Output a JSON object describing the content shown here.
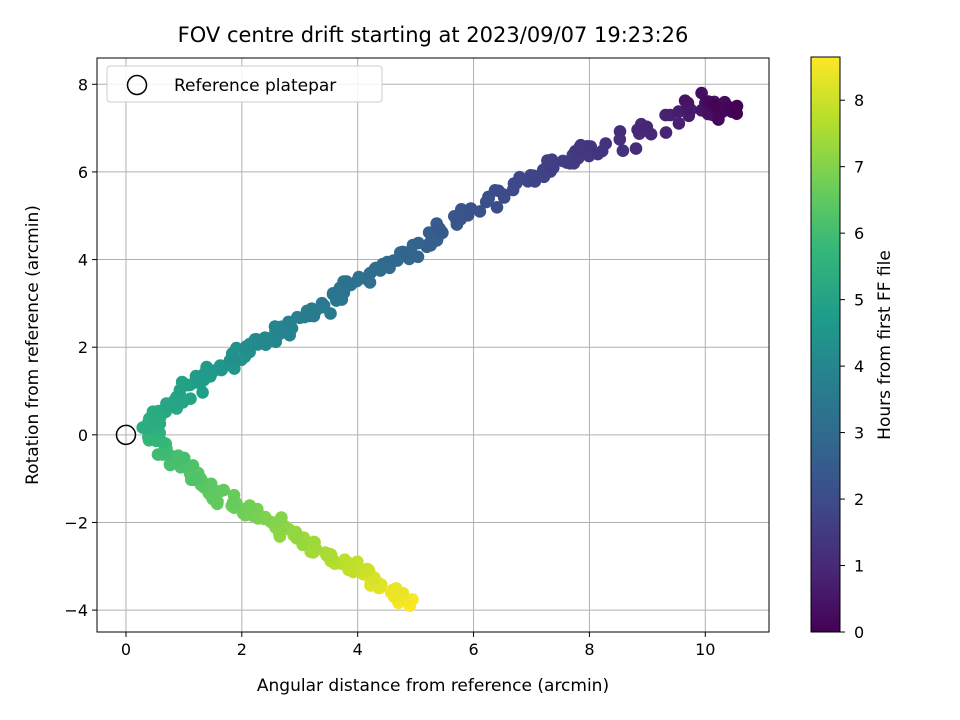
{
  "chart_data": {
    "type": "scatter",
    "title": "FOV centre drift starting at 2023/09/07 19:23:26",
    "xlabel": "Angular distance from reference (arcmin)",
    "ylabel": "Rotation from reference (arcmin)",
    "xlim": [
      -0.5,
      11.1
    ],
    "ylim": [
      -4.5,
      8.6
    ],
    "xticks": [
      0,
      2,
      4,
      6,
      8,
      10
    ],
    "yticks": [
      -4,
      -2,
      0,
      2,
      4,
      6,
      8
    ],
    "grid": true,
    "legend": {
      "placement": "top-left",
      "entries": [
        {
          "label": "Reference platepar",
          "marker": "open-circle"
        }
      ]
    },
    "reference_point": {
      "x": 0,
      "y": 0
    },
    "colorbar": {
      "label": "Hours from first FF file",
      "range": [
        0,
        8.65
      ],
      "ticks": [
        0,
        1,
        2,
        3,
        4,
        5,
        6,
        7,
        8
      ],
      "colormap": "viridis"
    },
    "colormap_stops": [
      "#440154",
      "#482878",
      "#3e4989",
      "#31688e",
      "#26828e",
      "#1f9e89",
      "#35b779",
      "#6ece58",
      "#b5de2b",
      "#fde725"
    ],
    "anchors": [
      {
        "x": 10.4,
        "y": 7.4,
        "hours": 0.0
      },
      {
        "x": 10.0,
        "y": 7.5,
        "hours": 0.5
      },
      {
        "x": 8.2,
        "y": 6.6,
        "hours": 1.3
      },
      {
        "x": 7.3,
        "y": 6.1,
        "hours": 1.7
      },
      {
        "x": 6.0,
        "y": 5.2,
        "hours": 2.2
      },
      {
        "x": 5.0,
        "y": 4.2,
        "hours": 2.8
      },
      {
        "x": 3.8,
        "y": 3.4,
        "hours": 3.3
      },
      {
        "x": 3.0,
        "y": 2.5,
        "hours": 3.8
      },
      {
        "x": 2.0,
        "y": 1.9,
        "hours": 4.3
      },
      {
        "x": 1.2,
        "y": 1.1,
        "hours": 4.9
      },
      {
        "x": 0.4,
        "y": 0.3,
        "hours": 5.4
      },
      {
        "x": 0.5,
        "y": -0.1,
        "hours": 5.8
      },
      {
        "x": 1.0,
        "y": -0.8,
        "hours": 6.2
      },
      {
        "x": 1.7,
        "y": -1.5,
        "hours": 6.6
      },
      {
        "x": 2.6,
        "y": -2.1,
        "hours": 7.1
      },
      {
        "x": 3.5,
        "y": -2.8,
        "hours": 7.6
      },
      {
        "x": 4.3,
        "y": -3.3,
        "hours": 8.2
      },
      {
        "x": 4.9,
        "y": -3.9,
        "hours": 8.65
      }
    ],
    "points_per_segment": 22
  }
}
